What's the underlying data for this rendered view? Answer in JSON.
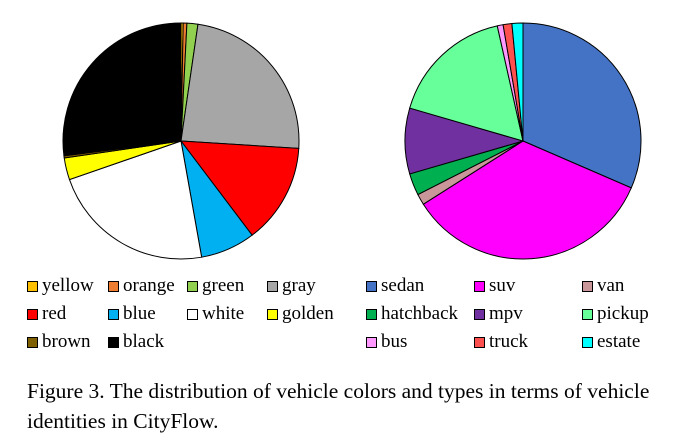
{
  "chart_data": [
    {
      "type": "pie",
      "name": "colors",
      "slices": [
        {
          "label": "yellow",
          "value": 0.3,
          "color": "#FFC000"
        },
        {
          "label": "orange",
          "value": 0.5,
          "color": "#ED7D31"
        },
        {
          "label": "green",
          "value": 1.5,
          "color": "#92D050"
        },
        {
          "label": "gray",
          "value": 23.7,
          "color": "#A6A6A6"
        },
        {
          "label": "red",
          "value": 13.7,
          "color": "#FF0000"
        },
        {
          "label": "blue",
          "value": 7.5,
          "color": "#00B0F0"
        },
        {
          "label": "white",
          "value": 22.5,
          "color": "#FFFFFF"
        },
        {
          "label": "golden",
          "value": 3.0,
          "color": "#FFFF00"
        },
        {
          "label": "brown",
          "value": 0.3,
          "color": "#7F6000"
        },
        {
          "label": "black",
          "value": 27.0,
          "color": "#000000"
        }
      ],
      "start_angle_deg": 0
    },
    {
      "type": "pie",
      "name": "types",
      "slices": [
        {
          "label": "sedan",
          "value": 31.5,
          "color": "#4472C4"
        },
        {
          "label": "suv",
          "value": 34.5,
          "color": "#FF00FF"
        },
        {
          "label": "van",
          "value": 1.5,
          "color": "#C9969A"
        },
        {
          "label": "hatchback",
          "value": 3.0,
          "color": "#00B050"
        },
        {
          "label": "mpv",
          "value": 9.0,
          "color": "#7030A0"
        },
        {
          "label": "pickup",
          "value": 17.0,
          "color": "#66FF99"
        },
        {
          "label": "bus",
          "value": 0.8,
          "color": "#FF99FF"
        },
        {
          "label": "truck",
          "value": 1.2,
          "color": "#FF5050"
        },
        {
          "label": "estate",
          "value": 1.5,
          "color": "#00FFFF"
        }
      ],
      "start_angle_deg": 0
    }
  ],
  "legend_colors": [
    {
      "label": "yellow",
      "color": "#FFC000"
    },
    {
      "label": "orange",
      "color": "#ED7D31"
    },
    {
      "label": "green",
      "color": "#92D050"
    },
    {
      "label": "gray",
      "color": "#A6A6A6"
    },
    {
      "label": "red",
      "color": "#FF0000"
    },
    {
      "label": "blue",
      "color": "#00B0F0"
    },
    {
      "label": "white",
      "color": "#FFFFFF"
    },
    {
      "label": "golden",
      "color": "#FFFF00"
    },
    {
      "label": "brown",
      "color": "#7F6000"
    },
    {
      "label": "black",
      "color": "#000000"
    }
  ],
  "legend_types": [
    {
      "label": "sedan",
      "color": "#4472C4"
    },
    {
      "label": "suv",
      "color": "#FF00FF"
    },
    {
      "label": "van",
      "color": "#C9969A"
    },
    {
      "label": "hatchback",
      "color": "#00B050"
    },
    {
      "label": "mpv",
      "color": "#7030A0"
    },
    {
      "label": "pickup",
      "color": "#66FF99"
    },
    {
      "label": "bus",
      "color": "#FF99FF"
    },
    {
      "label": "truck",
      "color": "#FF5050"
    },
    {
      "label": "estate",
      "color": "#00FFFF"
    }
  ],
  "caption": "Figure 3. The distribution of vehicle colors and types in terms of vehicle identities in CityFlow."
}
